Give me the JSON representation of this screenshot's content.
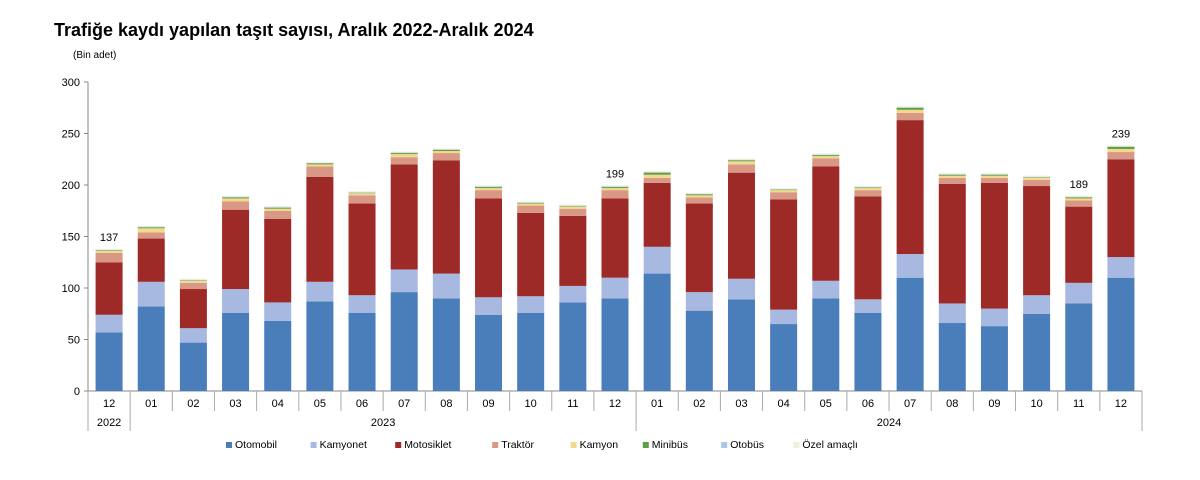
{
  "chart_data": {
    "type": "bar",
    "stacked": true,
    "title": "Trafiğe kaydı yapılan taşıt sayısı, Aralık 2022-Aralık 2024",
    "ylabel": "(Bin adet)",
    "ylim": [
      0,
      300
    ],
    "yticks": [
      0,
      50,
      100,
      150,
      200,
      250,
      300
    ],
    "categories": [
      "12",
      "01",
      "02",
      "03",
      "04",
      "05",
      "06",
      "07",
      "08",
      "09",
      "10",
      "11",
      "12",
      "01",
      "02",
      "03",
      "04",
      "05",
      "06",
      "07",
      "08",
      "09",
      "10",
      "11",
      "12"
    ],
    "years": [
      {
        "label": "2022",
        "span": 1
      },
      {
        "label": "2023",
        "span": 12
      },
      {
        "label": "2024",
        "span": 12
      }
    ],
    "totals_labels": [
      {
        "index": 0,
        "text": "137"
      },
      {
        "index": 12,
        "text": "199"
      },
      {
        "index": 23,
        "text": "189"
      },
      {
        "index": 24,
        "text": "239"
      }
    ],
    "series": [
      {
        "name": "Otomobil",
        "color": "#4a7ebb",
        "values": [
          57,
          82,
          47,
          76,
          68,
          87,
          76,
          96,
          90,
          74,
          76,
          86,
          90,
          114,
          78,
          89,
          65,
          90,
          76,
          110,
          66,
          63,
          75,
          85,
          110
        ]
      },
      {
        "name": "Kamyonet",
        "color": "#a7b9e0",
        "values": [
          17,
          24,
          14,
          23,
          18,
          19,
          17,
          22,
          24,
          17,
          16,
          16,
          20,
          26,
          18,
          20,
          14,
          17,
          13,
          23,
          19,
          17,
          18,
          20,
          20
        ]
      },
      {
        "name": "Motosiklet",
        "color": "#9e2a27",
        "values": [
          51,
          42,
          38,
          77,
          81,
          102,
          89,
          102,
          110,
          96,
          81,
          68,
          77,
          62,
          86,
          103,
          107,
          111,
          100,
          130,
          116,
          122,
          106,
          74,
          95
        ]
      },
      {
        "name": "Traktör",
        "color": "#d99786",
        "values": [
          9,
          6,
          6,
          8,
          8,
          10,
          8,
          7,
          7,
          8,
          7,
          7,
          8,
          5,
          6,
          8,
          7,
          8,
          6,
          7,
          6,
          5,
          6,
          6,
          7
        ]
      },
      {
        "name": "Kamyon",
        "color": "#f5d98a",
        "values": [
          2,
          4,
          2,
          3,
          2,
          2,
          2,
          3,
          2,
          2,
          2,
          2,
          2,
          3,
          2,
          3,
          2,
          2,
          2,
          3,
          2,
          2,
          2,
          2,
          3
        ]
      },
      {
        "name": "Minibüs",
        "color": "#5e9e44",
        "values": [
          0.5,
          1,
          0.5,
          1,
          1,
          1,
          0.5,
          1,
          1,
          1,
          0.5,
          0.5,
          1,
          2,
          1,
          1,
          0.5,
          1,
          0.5,
          2,
          1,
          1,
          0.5,
          1,
          2
        ]
      },
      {
        "name": "Otobüs",
        "color": "#a9c6e6",
        "values": [
          0.5,
          0.5,
          0.5,
          0.5,
          0.5,
          0.5,
          0.5,
          0.5,
          0.5,
          0.5,
          0.5,
          0.5,
          0.5,
          0.5,
          0.5,
          0.5,
          0.5,
          0.5,
          0.5,
          0.5,
          0.5,
          0.5,
          0.5,
          0.5,
          0.5
        ]
      },
      {
        "name": "Özel amaçlı",
        "color": "#eef0d8",
        "values": [
          1,
          1,
          1,
          1,
          1,
          1,
          1,
          1,
          1,
          1,
          1,
          1,
          1,
          1,
          1,
          1,
          1,
          1,
          1,
          1,
          1,
          1,
          1,
          1,
          1
        ]
      }
    ],
    "legend_position": "bottom",
    "grid": false
  }
}
